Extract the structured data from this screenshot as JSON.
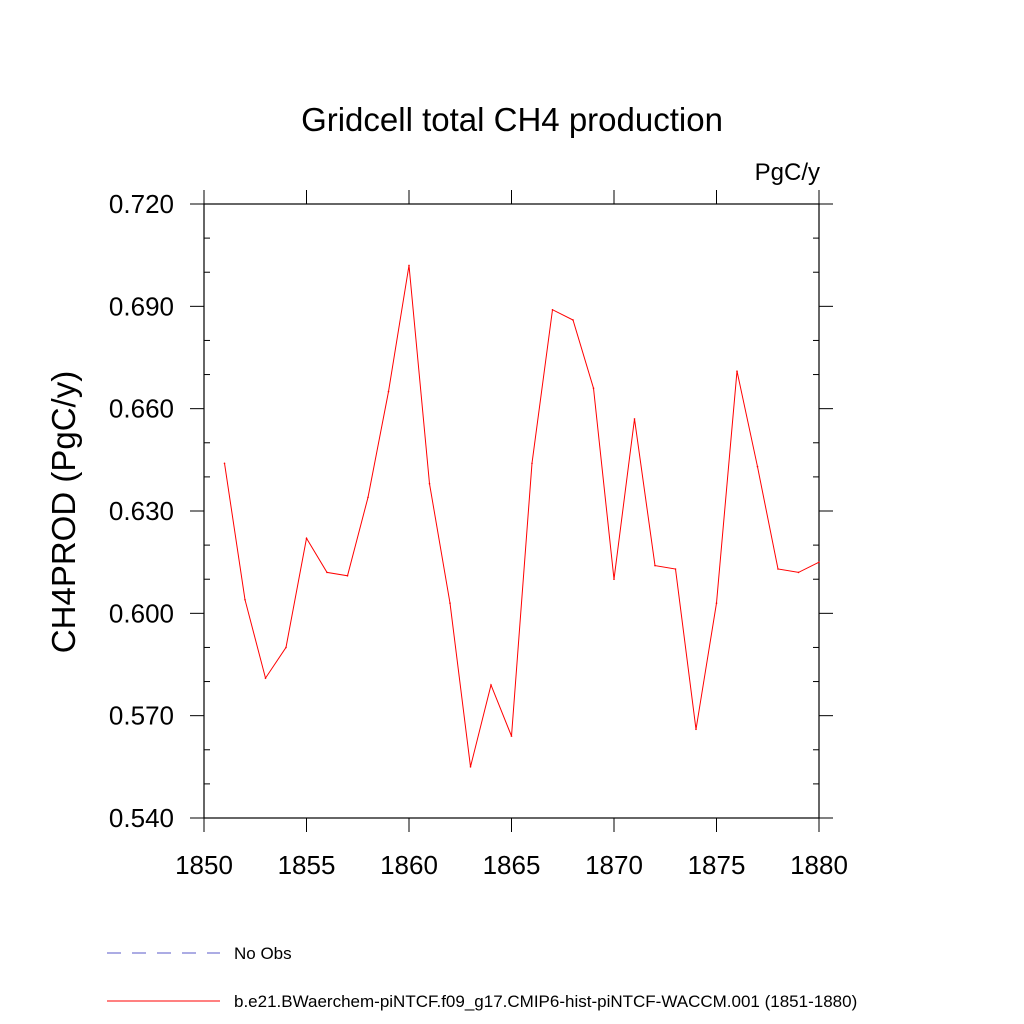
{
  "chart_data": {
    "type": "line",
    "title": "Gridcell total CH4 production",
    "units_label": "PgC/y",
    "xlabel": "",
    "ylabel": "CH4PROD  (PgC/y)",
    "xlim": [
      1850,
      1880
    ],
    "ylim": [
      0.54,
      0.72
    ],
    "xticks": [
      1850,
      1855,
      1860,
      1865,
      1870,
      1875,
      1880
    ],
    "xtick_labels": [
      "1850",
      "1855",
      "1860",
      "1865",
      "1870",
      "1875",
      "1880"
    ],
    "yticks": [
      0.54,
      0.57,
      0.6,
      0.63,
      0.66,
      0.69,
      0.72
    ],
    "ytick_labels": [
      "0.540",
      "0.570",
      "0.600",
      "0.630",
      "0.660",
      "0.690",
      "0.720"
    ],
    "grid": false,
    "legend_position": "bottom-left",
    "series": [
      {
        "name": "b.e21.BWaerchem-piNTCF.f09_g17.CMIP6-hist-piNTCF-WACCM.001 (1851-1880)",
        "color": "#ff0000",
        "dash": "solid",
        "x": [
          1851,
          1852,
          1853,
          1854,
          1855,
          1856,
          1857,
          1858,
          1859,
          1860,
          1861,
          1862,
          1863,
          1864,
          1865,
          1866,
          1867,
          1868,
          1869,
          1870,
          1871,
          1872,
          1873,
          1874,
          1875,
          1876,
          1877,
          1878,
          1879,
          1880
        ],
        "y": [
          0.644,
          0.604,
          0.581,
          0.59,
          0.622,
          0.612,
          0.611,
          0.634,
          0.665,
          0.702,
          0.638,
          0.603,
          0.555,
          0.579,
          0.564,
          0.644,
          0.689,
          0.686,
          0.666,
          0.61,
          0.657,
          0.614,
          0.613,
          0.566,
          0.603,
          0.671,
          0.643,
          0.613,
          0.612,
          0.615
        ]
      },
      {
        "name": "No Obs",
        "color": "#5a5ac8",
        "dash": "dashed",
        "x": [],
        "y": []
      }
    ]
  }
}
